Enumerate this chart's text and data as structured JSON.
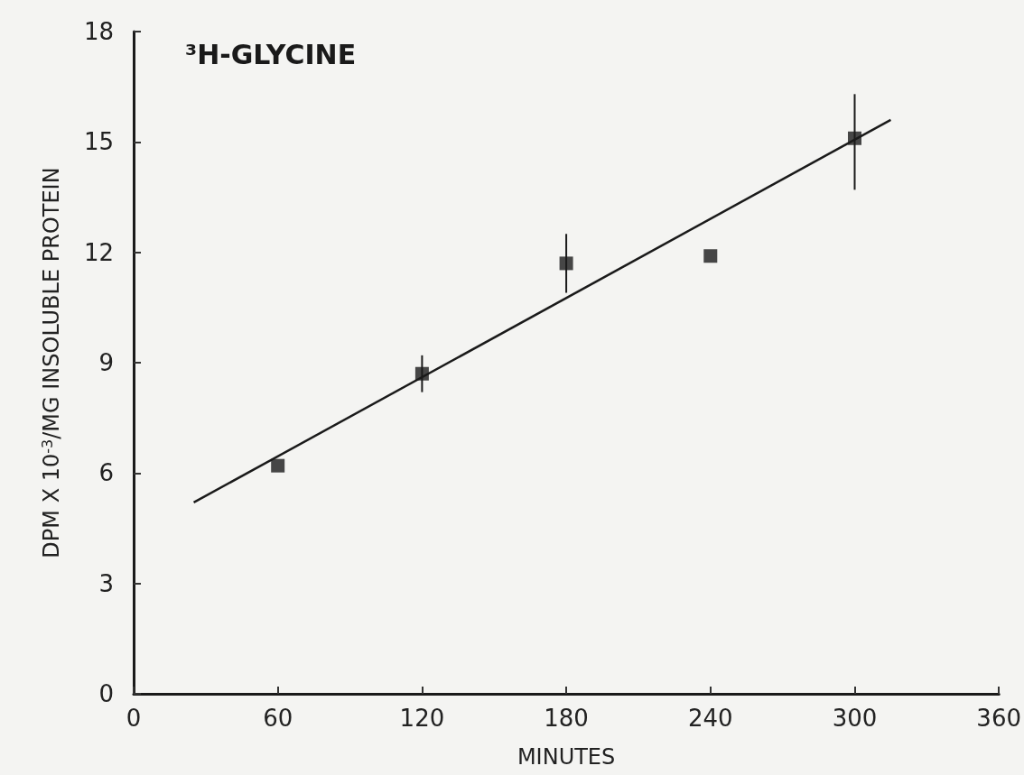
{
  "chart_data": {
    "type": "scatter",
    "title": "³H-GLYCINE",
    "xlabel": "MINUTES",
    "ylabel": "DPM X 10$^{-3}$/MG INSOLUBLE PROTEIN",
    "x": [
      60,
      120,
      180,
      240,
      300
    ],
    "series": [
      {
        "color": "#1a1a1a",
        "marker": "square",
        "values": [
          6.2,
          8.7,
          11.7,
          11.9,
          15.1
        ],
        "errors": [
          null,
          [
            8.2,
            9.2
          ],
          [
            10.9,
            12.5
          ],
          null,
          [
            13.7,
            16.3
          ]
        ]
      },
      {
        "type": "line",
        "color": "#1a1a1a",
        "marker": "none",
        "line_style": "solid",
        "x": [
          25,
          315
        ],
        "values": [
          5.2,
          15.6
        ]
      }
    ],
    "xlim": [
      0,
      360
    ],
    "xticks": [
      0,
      60,
      120,
      180,
      240,
      300,
      360
    ],
    "ylim": [
      0,
      18
    ],
    "yticks": [
      0,
      3,
      6,
      9,
      12,
      15,
      18
    ],
    "grid": false
  }
}
